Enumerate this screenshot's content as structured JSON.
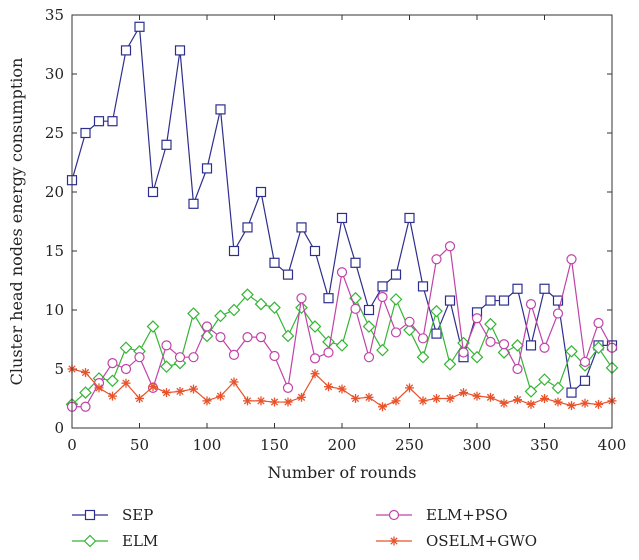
{
  "chart_data": {
    "type": "line",
    "xlabel": "Number of rounds",
    "ylabel": "Cluster head nodes energy consumption",
    "xlim": [
      0,
      400
    ],
    "ylim": [
      0,
      35
    ],
    "xticks": [
      0,
      50,
      100,
      150,
      200,
      250,
      300,
      350,
      400
    ],
    "yticks": [
      0,
      5,
      10,
      15,
      20,
      25,
      30,
      35
    ],
    "grid": false,
    "legend_position": "bottom",
    "x": [
      0,
      10,
      20,
      30,
      40,
      50,
      60,
      70,
      80,
      90,
      100,
      110,
      120,
      130,
      140,
      150,
      160,
      170,
      180,
      190,
      200,
      210,
      220,
      230,
      240,
      250,
      260,
      270,
      280,
      290,
      300,
      310,
      320,
      330,
      340,
      350,
      360,
      370,
      380,
      390,
      400
    ],
    "series": [
      {
        "name": "SEP",
        "color": "#2e2e8f",
        "marker": "square",
        "values": [
          21,
          25,
          26,
          26,
          32,
          34,
          20,
          24,
          32,
          19,
          22,
          27,
          15,
          17,
          20,
          14,
          13,
          17,
          15,
          11,
          17.8,
          14,
          10,
          12,
          13,
          17.8,
          12,
          8,
          10.8,
          6,
          9.8,
          10.8,
          10.8,
          11.8,
          7,
          11.8,
          10.8,
          3,
          4,
          7,
          7
        ]
      },
      {
        "name": "ELM",
        "color": "#35b535",
        "marker": "diamond",
        "values": [
          2,
          3,
          4.2,
          4,
          6.8,
          6.5,
          8.6,
          5.2,
          5.5,
          9.7,
          7.8,
          9.5,
          10,
          11.3,
          10.5,
          10.2,
          7.8,
          10.2,
          8.6,
          7.3,
          7,
          11,
          8.6,
          6.6,
          10.9,
          8.3,
          6,
          9.9,
          5.4,
          7.2,
          6,
          8.8,
          6.4,
          7,
          3.1,
          4.1,
          3.4,
          6.5,
          5.3,
          6.8,
          5.1
        ]
      },
      {
        "name": "ELM+PSO",
        "color": "#c043a8",
        "marker": "circle",
        "values": [
          1.8,
          1.8,
          3.8,
          5.5,
          5,
          6,
          3.4,
          7,
          6,
          6,
          8.6,
          7.7,
          6.2,
          7.7,
          7.7,
          6.1,
          3.4,
          11,
          5.9,
          6.4,
          13.2,
          10.1,
          6,
          11.1,
          8.1,
          9,
          7.6,
          14.3,
          15.4,
          6.4,
          9.3,
          7.3,
          7.1,
          5,
          10.5,
          6.8,
          9.7,
          14.3,
          5.6,
          8.9,
          6.8
        ]
      },
      {
        "name": "OSELM+GWO",
        "color": "#e8532b",
        "marker": "star",
        "values": [
          5,
          4.7,
          3.4,
          2.7,
          3.8,
          2.5,
          3.5,
          3,
          3.1,
          3.3,
          2.3,
          2.7,
          3.9,
          2.3,
          2.3,
          2.2,
          2.2,
          2.6,
          4.6,
          3.5,
          3.3,
          2.5,
          2.6,
          1.8,
          2.3,
          3.4,
          2.3,
          2.5,
          2.5,
          3,
          2.7,
          2.6,
          2.1,
          2.4,
          2,
          2.5,
          2.2,
          1.9,
          2.1,
          2,
          2.3
        ]
      }
    ]
  }
}
